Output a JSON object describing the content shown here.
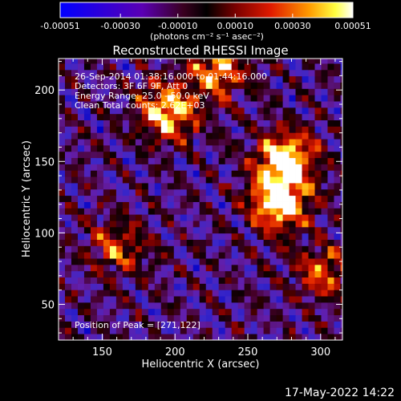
{
  "colorbar": {
    "tick_labels": [
      "-0.00051",
      "-0.00030",
      "-0.00010",
      "0.00010",
      "0.00030",
      "0.00051"
    ],
    "tick_values": [
      -0.00051,
      -0.0003,
      -0.0001,
      0.0001,
      0.0003,
      0.00051
    ],
    "range": [
      -0.00051,
      0.00051
    ],
    "unit_label": "(photons cm⁻² s⁻¹ asec⁻²)"
  },
  "chart_data": {
    "type": "heatmap",
    "title": "Reconstructed RHESSI Image",
    "xlabel": "Heliocentric X (arcsec)",
    "ylabel": "Heliocentric Y (arcsec)",
    "xlim": [
      120,
      315
    ],
    "ylim": [
      25,
      222
    ],
    "x_ticks": [
      150,
      200,
      250,
      300
    ],
    "y_ticks": [
      50,
      100,
      150,
      200
    ],
    "colormap": "blue-purple-red-yellow-white",
    "sources": [
      {
        "x": 271,
        "y": 122,
        "peak": 1.0
      },
      {
        "x": 276,
        "y": 152,
        "peak": 0.95
      },
      {
        "x": 195,
        "y": 185,
        "peak": 0.85
      },
      {
        "x": 230,
        "y": 215,
        "peak": 0.7
      },
      {
        "x": 302,
        "y": 72,
        "peak": 0.55
      },
      {
        "x": 160,
        "y": 90,
        "peak": 0.5
      }
    ],
    "annotations": [
      "26-Sep-2014 01:38:16.000 to 01:44:16.000",
      "Detectors: 3F 6F 9F, Att 0",
      "Energy Range: 25.0 - 50.0 keV",
      "Clean     Total counts: 2.62E+03",
      "Position of Peak = [271,122]"
    ]
  },
  "footer": {
    "date": "17-May-2022 14:22"
  }
}
